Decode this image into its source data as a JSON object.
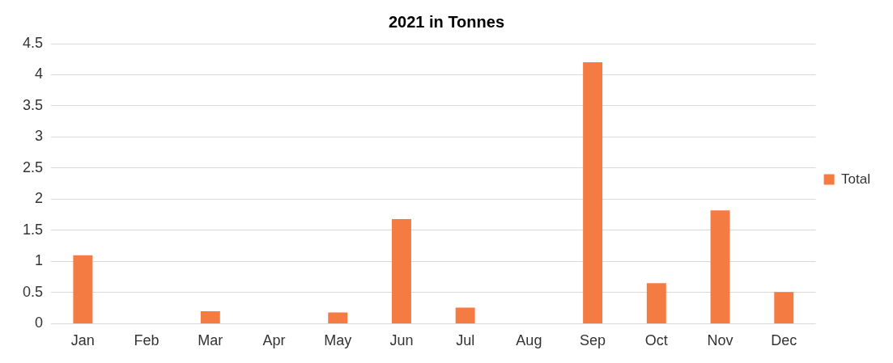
{
  "chart_data": {
    "type": "bar",
    "title": "2021 in Tonnes",
    "categories": [
      "Jan",
      "Feb",
      "Mar",
      "Apr",
      "May",
      "Jun",
      "Jul",
      "Aug",
      "Sep",
      "Oct",
      "Nov",
      "Dec"
    ],
    "series": [
      {
        "name": "Total",
        "color": "#f47b42",
        "values": [
          1.1,
          0,
          0.2,
          0,
          0.18,
          1.68,
          0.26,
          0,
          4.2,
          0.65,
          1.82,
          0.51
        ]
      }
    ],
    "ylim": [
      0,
      4.5
    ],
    "yticks": [
      0,
      0.5,
      1,
      1.5,
      2,
      2.5,
      3,
      3.5,
      4,
      4.5
    ],
    "grid": "y",
    "legend": "right"
  }
}
